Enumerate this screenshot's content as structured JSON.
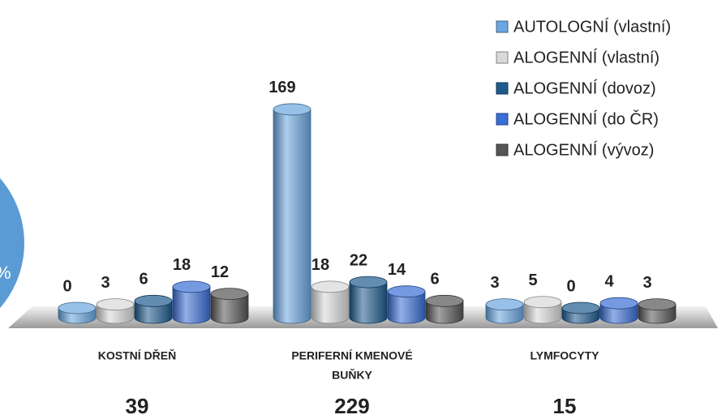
{
  "chart_data": {
    "type": "bar3d",
    "categories": [
      [
        "KOSTNÍ DŘEŇ"
      ],
      [
        "PERIFERNÍ KMENOVÉ",
        "BUŇKY"
      ],
      [
        "LYMFOCYTY"
      ]
    ],
    "totals": [
      39,
      229,
      15
    ],
    "side_label": "%",
    "series": [
      {
        "name": "AUTOLOGNÍ (vlastní)",
        "color": "#6aa6e0",
        "values": [
          0,
          169,
          3
        ]
      },
      {
        "name": "ALOGENNÍ (vlastní)",
        "color": "#d9d9d9",
        "values": [
          3,
          18,
          5
        ]
      },
      {
        "name": "ALOGENNÍ (dovoz)",
        "color": "#1f5a8e",
        "values": [
          6,
          22,
          0
        ]
      },
      {
        "name": "ALOGENNÍ (do ČR)",
        "color": "#3a6ed6",
        "values": [
          18,
          14,
          4
        ]
      },
      {
        "name": "ALOGENNÍ (vývoz)",
        "color": "#555555",
        "values": [
          12,
          6,
          3
        ]
      }
    ],
    "legend": "top-right"
  }
}
